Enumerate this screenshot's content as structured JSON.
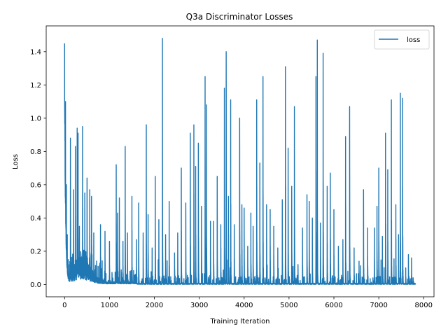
{
  "chart_data": {
    "type": "line",
    "title": "Q3a Discriminator Losses",
    "xlabel": "Training Iteration",
    "ylabel": "Loss",
    "xlim": [
      -410,
      8230
    ],
    "ylim": [
      -0.074,
      1.555
    ],
    "xticks": [
      0,
      1000,
      2000,
      3000,
      4000,
      5000,
      6000,
      7000,
      8000
    ],
    "yticks": [
      0.0,
      0.2,
      0.4,
      0.6,
      0.8,
      1.0,
      1.2,
      1.4
    ],
    "xtick_labels": [
      "0",
      "1000",
      "2000",
      "3000",
      "4000",
      "5000",
      "6000",
      "7000",
      "8000"
    ],
    "ytick_labels": [
      "0.0",
      "0.2",
      "0.4",
      "0.6",
      "0.8",
      "1.0",
      "1.2",
      "1.4"
    ],
    "grid": false,
    "legend_position": "top-right",
    "color": "#1f77b4",
    "series": [
      {
        "name": "loss",
        "num_points": 7820,
        "initial": [
          [
            0,
            1.45
          ],
          [
            20,
            1.1
          ],
          [
            40,
            0.6
          ],
          [
            60,
            0.3
          ],
          [
            80,
            0.15
          ]
        ],
        "peaks": [
          [
            130,
            0.88
          ],
          [
            200,
            0.57
          ],
          [
            240,
            0.83
          ],
          [
            280,
            0.94
          ],
          [
            300,
            0.91
          ],
          [
            330,
            0.35
          ],
          [
            400,
            0.95
          ],
          [
            450,
            0.55
          ],
          [
            500,
            0.64
          ],
          [
            560,
            0.57
          ],
          [
            600,
            0.53
          ],
          [
            650,
            0.31
          ],
          [
            800,
            0.36
          ],
          [
            900,
            0.32
          ],
          [
            1000,
            0.26
          ],
          [
            1150,
            0.72
          ],
          [
            1180,
            0.43
          ],
          [
            1220,
            0.52
          ],
          [
            1300,
            0.26
          ],
          [
            1350,
            0.83
          ],
          [
            1400,
            0.31
          ],
          [
            1500,
            0.53
          ],
          [
            1600,
            0.27
          ],
          [
            1650,
            0.49
          ],
          [
            1750,
            0.31
          ],
          [
            1820,
            0.96
          ],
          [
            1860,
            0.42
          ],
          [
            1950,
            0.22
          ],
          [
            2020,
            0.65
          ],
          [
            2100,
            0.39
          ],
          [
            2180,
            1.48
          ],
          [
            2250,
            0.3
          ],
          [
            2330,
            0.5
          ],
          [
            2450,
            0.19
          ],
          [
            2520,
            0.31
          ],
          [
            2600,
            0.7
          ],
          [
            2700,
            0.49
          ],
          [
            2800,
            0.91
          ],
          [
            2880,
            0.96
          ],
          [
            2920,
            0.71
          ],
          [
            2980,
            0.85
          ],
          [
            3050,
            0.47
          ],
          [
            3130,
            1.25
          ],
          [
            3160,
            1.08
          ],
          [
            3250,
            0.38
          ],
          [
            3320,
            0.38
          ],
          [
            3400,
            0.65
          ],
          [
            3480,
            0.36
          ],
          [
            3560,
            1.18
          ],
          [
            3600,
            1.4
          ],
          [
            3650,
            0.53
          ],
          [
            3700,
            1.11
          ],
          [
            3780,
            0.36
          ],
          [
            3900,
            1.0
          ],
          [
            3950,
            0.48
          ],
          [
            4000,
            0.46
          ],
          [
            4080,
            0.23
          ],
          [
            4150,
            0.43
          ],
          [
            4200,
            0.35
          ],
          [
            4280,
            1.11
          ],
          [
            4350,
            0.73
          ],
          [
            4420,
            1.25
          ],
          [
            4500,
            0.48
          ],
          [
            4580,
            0.45
          ],
          [
            4660,
            0.35
          ],
          [
            4750,
            0.22
          ],
          [
            4850,
            0.51
          ],
          [
            4920,
            1.31
          ],
          [
            4980,
            0.82
          ],
          [
            5060,
            0.59
          ],
          [
            5120,
            1.07
          ],
          [
            5200,
            0.12
          ],
          [
            5300,
            0.34
          ],
          [
            5400,
            0.54
          ],
          [
            5450,
            0.5
          ],
          [
            5520,
            0.4
          ],
          [
            5600,
            1.25
          ],
          [
            5630,
            1.47
          ],
          [
            5700,
            0.37
          ],
          [
            5760,
            1.39
          ],
          [
            5850,
            0.59
          ],
          [
            5920,
            0.67
          ],
          [
            6000,
            0.45
          ],
          [
            6100,
            0.23
          ],
          [
            6200,
            0.27
          ],
          [
            6260,
            0.89
          ],
          [
            6350,
            1.07
          ],
          [
            6450,
            0.22
          ],
          [
            6560,
            0.14
          ],
          [
            6660,
            0.57
          ],
          [
            6750,
            0.34
          ],
          [
            6900,
            0.34
          ],
          [
            6960,
            0.47
          ],
          [
            7000,
            0.7
          ],
          [
            7080,
            0.29
          ],
          [
            7150,
            0.91
          ],
          [
            7200,
            0.69
          ],
          [
            7280,
            1.11
          ],
          [
            7380,
            0.48
          ],
          [
            7440,
            0.3
          ],
          [
            7480,
            1.15
          ],
          [
            7530,
            1.12
          ],
          [
            7600,
            0.1
          ],
          [
            7660,
            0.18
          ],
          [
            7730,
            0.16
          ]
        ]
      }
    ]
  }
}
